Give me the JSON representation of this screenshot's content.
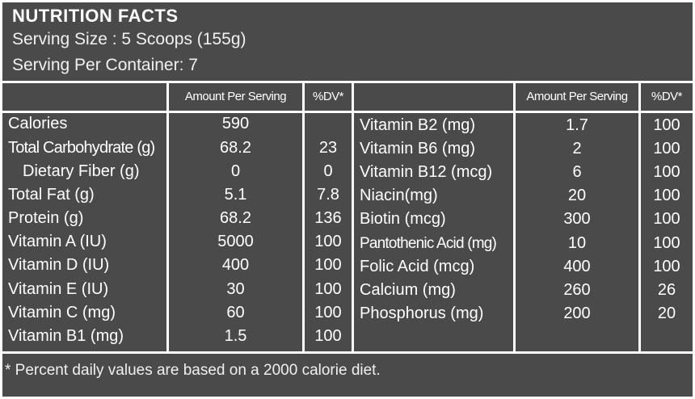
{
  "header": {
    "title": "NUTRITION FACTS",
    "serving_size": "Serving Size : 5 Scoops (155g)",
    "servings_per_container": "Serving Per Container: 7"
  },
  "columns": {
    "amount": "Amount Per Serving",
    "dv": "%DV*"
  },
  "left_rows": [
    {
      "name": "Calories",
      "amount": "590",
      "dv": ""
    },
    {
      "name": "Total Carbohydrate (g)",
      "amount": "68.2",
      "dv": "23"
    },
    {
      "name": "Dietary Fiber (g)",
      "amount": "0",
      "dv": "0"
    },
    {
      "name": "Total Fat (g)",
      "amount": "5.1",
      "dv": "7.8"
    },
    {
      "name": "Protein (g)",
      "amount": "68.2",
      "dv": "136"
    },
    {
      "name": "Vitamin A (IU)",
      "amount": "5000",
      "dv": "100"
    },
    {
      "name": "Vitamin D (IU)",
      "amount": "400",
      "dv": "100"
    },
    {
      "name": "Vitamin E (IU)",
      "amount": "30",
      "dv": "100"
    },
    {
      "name": "Vitamin C (mg)",
      "amount": "60",
      "dv": "100"
    },
    {
      "name": "Vitamin B1 (mg)",
      "amount": "1.5",
      "dv": "100"
    }
  ],
  "right_rows": [
    {
      "name": "Vitamin B2 (mg)",
      "amount": "1.7",
      "dv": "100"
    },
    {
      "name": "Vitamin B6 (mg)",
      "amount": "2",
      "dv": "100"
    },
    {
      "name": "Vitamin B12 (mcg)",
      "amount": "6",
      "dv": "100"
    },
    {
      "name": "Niacin(mg)",
      "amount": "20",
      "dv": "100"
    },
    {
      "name": "Biotin (mcg)",
      "amount": "300",
      "dv": "100"
    },
    {
      "name": "Pantothenic Acid (mg)",
      "amount": "10",
      "dv": "100"
    },
    {
      "name": "Folic Acid (mcg)",
      "amount": "400",
      "dv": "100"
    },
    {
      "name": "Calcium (mg)",
      "amount": "260",
      "dv": "26"
    },
    {
      "name": "Phosphorus (mg)",
      "amount": "200",
      "dv": "20"
    }
  ],
  "footnote": "* Percent daily values are based on a 2000 calorie diet.",
  "colors": {
    "panel": "#4a4a4b",
    "lines": "#ffffff",
    "text": "#ffffff"
  }
}
